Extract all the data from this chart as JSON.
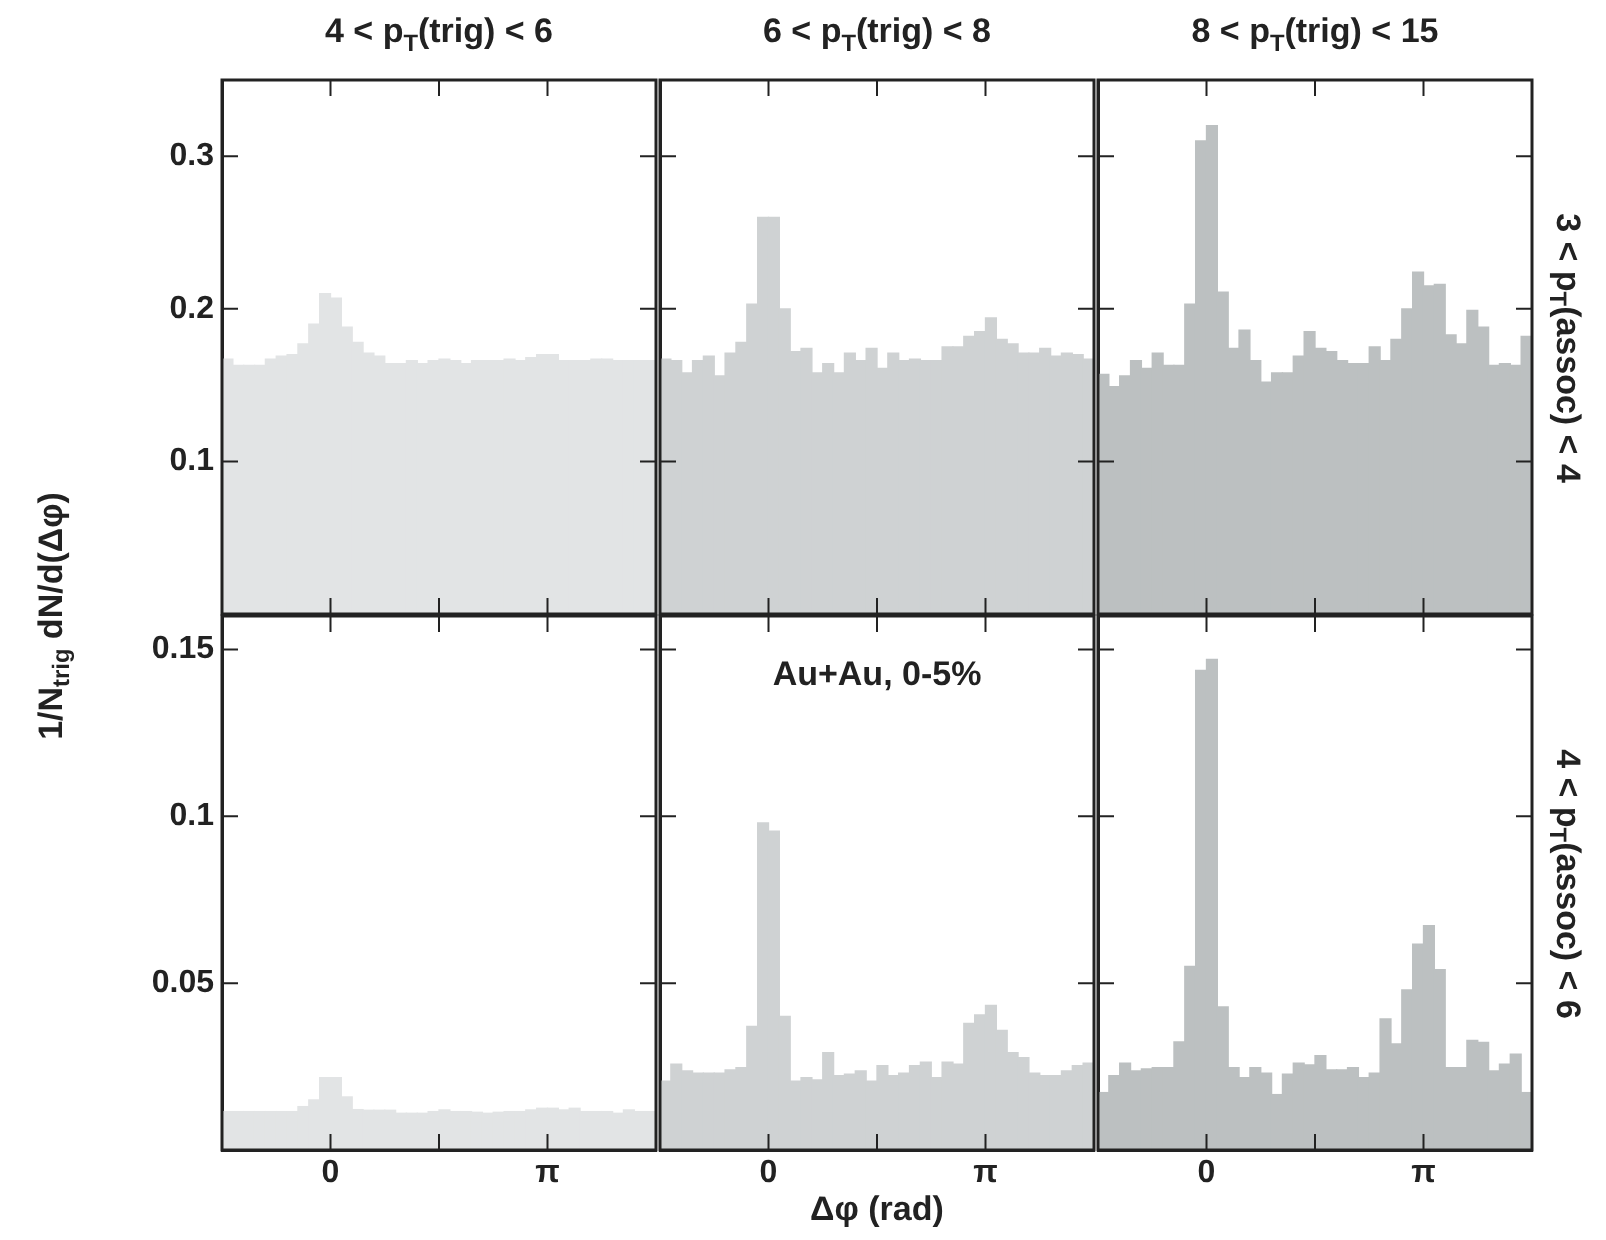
{
  "chart_data": [
    {
      "type": "histogram",
      "title": "4 < p$_{T}$(trig) < 6",
      "ylabel": "1/N$_{trig}$ dN/d(Δφ)",
      "color": "#e2e4e5",
      "xlim": [
        -1.5708,
        4.7124
      ],
      "xticks": [
        0,
        1.5708,
        3.1416
      ],
      "ylim": [
        0,
        0.35
      ],
      "yticks": [
        0.1,
        0.2,
        0.3
      ],
      "tick_labels": "y",
      "bins": [
        -1.5708,
        -1.4137,
        -1.2566,
        -1.0996,
        -0.9425,
        -0.7854,
        -0.6283,
        -0.4712,
        -0.3142,
        -0.1571,
        0,
        0.1571,
        0.3142,
        0.4712,
        0.6283,
        0.7854,
        0.9425,
        1.0996,
        1.2566,
        1.4137,
        1.5708,
        1.7279,
        1.885,
        2.042,
        2.1991,
        2.3562,
        2.5133,
        2.6704,
        2.8274,
        2.9845,
        3.1416,
        3.2987,
        3.4558,
        3.6128,
        3.7699,
        3.927,
        4.0841,
        4.2412,
        4.3982,
        4.5553,
        4.7124
      ],
      "values": [
        0.167,
        0.163,
        0.163,
        0.163,
        0.167,
        0.169,
        0.17,
        0.177,
        0.19,
        0.21,
        0.207,
        0.188,
        0.178,
        0.171,
        0.169,
        0.164,
        0.164,
        0.166,
        0.164,
        0.166,
        0.167,
        0.166,
        0.164,
        0.166,
        0.166,
        0.166,
        0.167,
        0.166,
        0.168,
        0.17,
        0.17,
        0.166,
        0.166,
        0.166,
        0.167,
        0.167,
        0.166,
        0.166,
        0.166,
        0.166
      ]
    },
    {
      "type": "histogram",
      "title": "6 < p$_{T}$(trig) < 8",
      "color": "#cfd2d3",
      "xlim": [
        -1.5708,
        4.7124
      ],
      "xticks": [
        0,
        1.5708,
        3.1416
      ],
      "ylim": [
        0,
        0.35
      ],
      "yticks": [
        0.1,
        0.2,
        0.3
      ],
      "tick_labels": false,
      "bins": [
        -1.5708,
        -1.4137,
        -1.2566,
        -1.0996,
        -0.9425,
        -0.7854,
        -0.6283,
        -0.4712,
        -0.3142,
        -0.1571,
        0,
        0.1571,
        0.3142,
        0.4712,
        0.6283,
        0.7854,
        0.9425,
        1.0996,
        1.2566,
        1.4137,
        1.5708,
        1.7279,
        1.885,
        2.042,
        2.1991,
        2.3562,
        2.5133,
        2.6704,
        2.8274,
        2.9845,
        3.1416,
        3.2987,
        3.4558,
        3.6128,
        3.7699,
        3.927,
        4.0841,
        4.2412,
        4.3982,
        4.5553,
        4.7124
      ],
      "values": [
        0.167,
        0.166,
        0.158,
        0.166,
        0.169,
        0.156,
        0.171,
        0.178,
        0.203,
        0.26,
        0.26,
        0.2,
        0.172,
        0.174,
        0.158,
        0.164,
        0.158,
        0.171,
        0.166,
        0.174,
        0.161,
        0.171,
        0.166,
        0.167,
        0.166,
        0.166,
        0.175,
        0.175,
        0.182,
        0.185,
        0.194,
        0.18,
        0.177,
        0.171,
        0.171,
        0.174,
        0.169,
        0.171,
        0.17,
        0.167
      ]
    },
    {
      "type": "histogram",
      "title": "8 < p$_{T}$(trig) < 15",
      "y2label": "3 < p$_{T}$(assoc) < 4",
      "color": "#bcc0c1",
      "xlim": [
        -1.5708,
        4.7124
      ],
      "xticks": [
        0,
        1.5708,
        3.1416
      ],
      "ylim": [
        0,
        0.35
      ],
      "yticks": [
        0.1,
        0.2,
        0.3
      ],
      "tick_labels": false,
      "bins": [
        -1.5708,
        -1.4137,
        -1.2566,
        -1.0996,
        -0.9425,
        -0.7854,
        -0.6283,
        -0.4712,
        -0.3142,
        -0.1571,
        0,
        0.1571,
        0.3142,
        0.4712,
        0.6283,
        0.7854,
        0.9425,
        1.0996,
        1.2566,
        1.4137,
        1.5708,
        1.7279,
        1.885,
        2.042,
        2.1991,
        2.3562,
        2.5133,
        2.6704,
        2.8274,
        2.9845,
        3.1416,
        3.2987,
        3.4558,
        3.6128,
        3.7699,
        3.927,
        4.0841,
        4.2412,
        4.3982,
        4.5553,
        4.7124
      ],
      "values": [
        0.157,
        0.149,
        0.156,
        0.166,
        0.161,
        0.171,
        0.163,
        0.163,
        0.203,
        0.31,
        0.32,
        0.211,
        0.174,
        0.186,
        0.166,
        0.152,
        0.158,
        0.158,
        0.169,
        0.185,
        0.174,
        0.172,
        0.166,
        0.164,
        0.164,
        0.175,
        0.166,
        0.18,
        0.2,
        0.224,
        0.215,
        0.216,
        0.183,
        0.177,
        0.199,
        0.188,
        0.163,
        0.164,
        0.163,
        0.182
      ]
    },
    {
      "type": "histogram",
      "color": "#e2e4e5",
      "xlim": [
        -1.5708,
        4.7124
      ],
      "xticks": [
        {
          "value": 0,
          "label": "0"
        },
        {
          "value": 1.5708,
          "label": null
        },
        {
          "value": 3.1416,
          "label": "π"
        }
      ],
      "ylim": [
        0,
        0.16
      ],
      "yticks": [
        0.05,
        0.1,
        0.15
      ],
      "bins": [
        -1.5708,
        -1.4137,
        -1.2566,
        -1.0996,
        -0.9425,
        -0.7854,
        -0.6283,
        -0.4712,
        -0.3142,
        -0.1571,
        0,
        0.1571,
        0.3142,
        0.4712,
        0.6283,
        0.7854,
        0.9425,
        1.0996,
        1.2566,
        1.4137,
        1.5708,
        1.7279,
        1.885,
        2.042,
        2.1991,
        2.3562,
        2.5133,
        2.6704,
        2.8274,
        2.9845,
        3.1416,
        3.2987,
        3.4558,
        3.6128,
        3.7699,
        3.927,
        4.0841,
        4.2412,
        4.3982,
        4.5553,
        4.7124
      ],
      "values": [
        0.0115,
        0.0115,
        0.0115,
        0.0115,
        0.0115,
        0.0115,
        0.0115,
        0.013,
        0.015,
        0.0217,
        0.0217,
        0.0159,
        0.0121,
        0.0119,
        0.0119,
        0.0119,
        0.011,
        0.011,
        0.011,
        0.0115,
        0.012,
        0.0115,
        0.0115,
        0.0113,
        0.011,
        0.0113,
        0.0115,
        0.0115,
        0.012,
        0.0125,
        0.0125,
        0.012,
        0.0125,
        0.0115,
        0.0115,
        0.0115,
        0.011,
        0.012,
        0.0115,
        0.0115
      ]
    },
    {
      "type": "histogram",
      "xlabel": "Δφ (rad)",
      "annotations": [
        "Au+Au, 0-5%"
      ],
      "color": "#cfd2d3",
      "xlim": [
        -1.5708,
        4.7124
      ],
      "xticks": [
        {
          "value": 0,
          "label": "0"
        },
        {
          "value": 1.5708,
          "label": null
        },
        {
          "value": 3.1416,
          "label": "π"
        }
      ],
      "ylim": [
        0,
        0.16
      ],
      "yticks": [
        0.05,
        0.1,
        0.15
      ],
      "tick_labels": "x",
      "bins": [
        -1.5708,
        -1.4137,
        -1.2566,
        -1.0996,
        -0.9425,
        -0.7854,
        -0.6283,
        -0.4712,
        -0.3142,
        -0.1571,
        0,
        0.1571,
        0.3142,
        0.4712,
        0.6283,
        0.7854,
        0.9425,
        1.0996,
        1.2566,
        1.4137,
        1.5708,
        1.7279,
        1.885,
        2.042,
        2.1991,
        2.3562,
        2.5133,
        2.6704,
        2.8274,
        2.9845,
        3.1416,
        3.2987,
        3.4558,
        3.6128,
        3.7699,
        3.927,
        4.0841,
        4.2412,
        4.3982,
        4.5553,
        4.7124
      ],
      "values": [
        0.0206,
        0.0257,
        0.0237,
        0.023,
        0.023,
        0.023,
        0.024,
        0.0247,
        0.037,
        0.098,
        0.0955,
        0.04,
        0.0206,
        0.0217,
        0.021,
        0.0292,
        0.0223,
        0.0227,
        0.0237,
        0.0206,
        0.0253,
        0.0223,
        0.023,
        0.0253,
        0.0263,
        0.0217,
        0.0263,
        0.0257,
        0.0379,
        0.0405,
        0.0433,
        0.0358,
        0.0292,
        0.0277,
        0.023,
        0.0223,
        0.0223,
        0.0237,
        0.0253,
        0.026
      ]
    },
    {
      "type": "histogram",
      "y2label": "4 < p$_{T}$(assoc) < 6",
      "color": "#bcc0c1",
      "xlim": [
        -1.5708,
        4.7124
      ],
      "xticks": [
        {
          "value": 0,
          "label": "0"
        },
        {
          "value": 1.5708,
          "label": null
        },
        {
          "value": 3.1416,
          "label": "π"
        }
      ],
      "ylim": [
        0,
        0.16
      ],
      "yticks": [
        0.05,
        0.1,
        0.15
      ],
      "tick_labels": "x",
      "bins": [
        -1.5708,
        -1.4137,
        -1.2566,
        -1.0996,
        -0.9425,
        -0.7854,
        -0.6283,
        -0.4712,
        -0.3142,
        -0.1571,
        0,
        0.1571,
        0.3142,
        0.4712,
        0.6283,
        0.7854,
        0.9425,
        1.0996,
        1.2566,
        1.4137,
        1.5708,
        1.7279,
        1.885,
        2.042,
        2.1991,
        2.3562,
        2.5133,
        2.6704,
        2.8274,
        2.9845,
        3.1416,
        3.2987,
        3.4558,
        3.6128,
        3.7699,
        3.927,
        4.0841,
        4.2412,
        4.3982,
        4.5553,
        4.7124
      ],
      "values": [
        0.0172,
        0.0223,
        0.026,
        0.0237,
        0.0243,
        0.0247,
        0.0247,
        0.0324,
        0.055,
        0.1437,
        0.147,
        0.0429,
        0.0247,
        0.0217,
        0.0247,
        0.023,
        0.0166,
        0.0227,
        0.026,
        0.0255,
        0.0283,
        0.024,
        0.024,
        0.0247,
        0.0217,
        0.023,
        0.0393,
        0.0318,
        0.048,
        0.0617,
        0.0672,
        0.054,
        0.0247,
        0.0247,
        0.0328,
        0.0322,
        0.0237,
        0.0257,
        0.0287,
        0.0172
      ]
    }
  ]
}
